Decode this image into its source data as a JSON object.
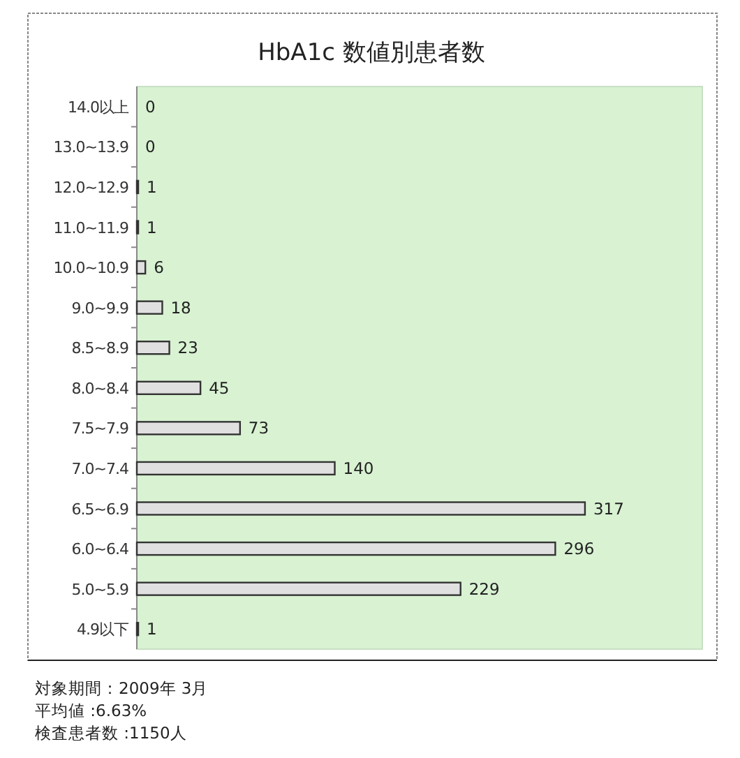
{
  "chart_data": {
    "type": "bar",
    "orientation": "horizontal",
    "title": "HbA1c 数値別患者数",
    "categories": [
      "14.0以上",
      "13.0~13.9",
      "12.0~12.9",
      "11.0~11.9",
      "10.0~10.9",
      "9.0~9.9",
      "8.5~8.9",
      "8.0~8.4",
      "7.5~7.9",
      "7.0~7.4",
      "6.5~6.9",
      "6.0~6.4",
      "5.0~5.9",
      "4.9以下"
    ],
    "values": [
      0,
      0,
      1,
      1,
      6,
      18,
      23,
      45,
      73,
      140,
      317,
      296,
      229,
      1
    ],
    "color": "#e0e0e0",
    "xlim": [
      0,
      400
    ],
    "data_labels": true,
    "annotations": [
      "対象期間：2009年 3月",
      "平均値 :6.63%",
      "検査患者数 :1150人"
    ]
  }
}
